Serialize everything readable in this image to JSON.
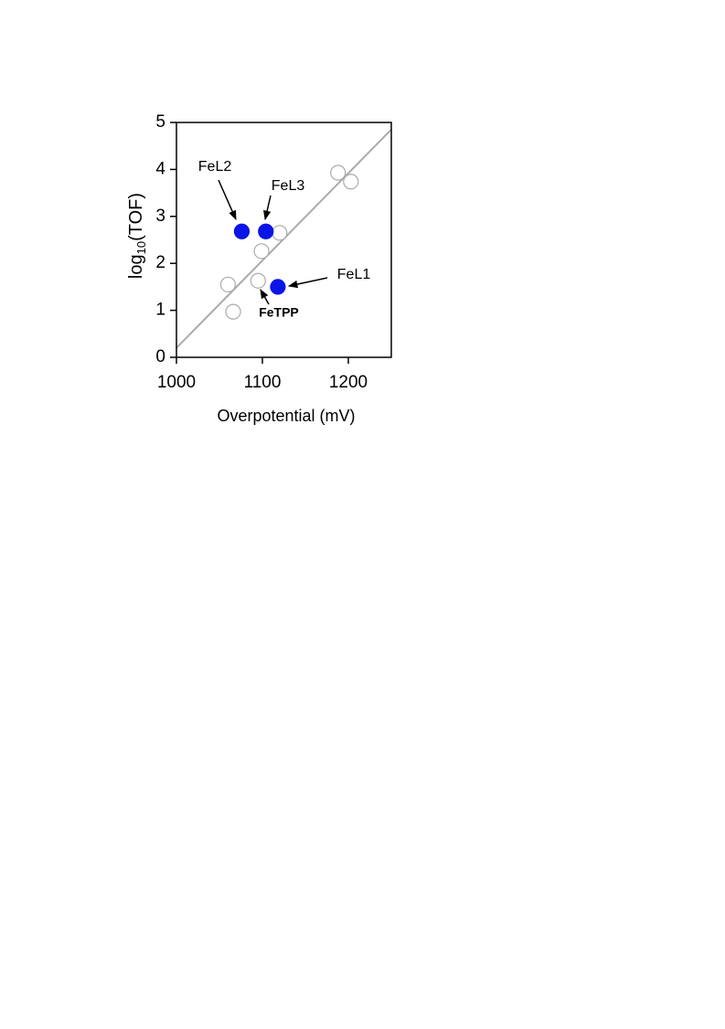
{
  "chart_data": {
    "type": "scatter",
    "xlabel": "Overpotential (mV)",
    "ylabel": [
      "log",
      "10",
      "(TOF)"
    ],
    "xlim": [
      1000,
      1250
    ],
    "xticks": [
      1000,
      1100,
      1200
    ],
    "ylim": [
      0,
      5
    ],
    "yticks": [
      0,
      1,
      2,
      3,
      4,
      5
    ],
    "series": [
      {
        "color": "#ffffff",
        "edgecolor": "#aaaaaa",
        "x": [
          1060,
          1066,
          1095,
          1099,
          1120,
          1188,
          1203
        ],
        "values": [
          1.55,
          0.97,
          1.63,
          2.26,
          2.65,
          3.93,
          3.74
        ]
      },
      {
        "color": "#0a14e6",
        "x": [
          1076,
          1104,
          1118
        ],
        "values": [
          2.68,
          2.68,
          1.5
        ]
      },
      {
        "type": "line",
        "color": "#aaaaaa",
        "x": [
          1000,
          1250
        ],
        "values": [
          0.2,
          4.85
        ]
      }
    ],
    "annotations": [
      "FeL2",
      "FeL3",
      "FeL1",
      "FeTPP"
    ]
  }
}
